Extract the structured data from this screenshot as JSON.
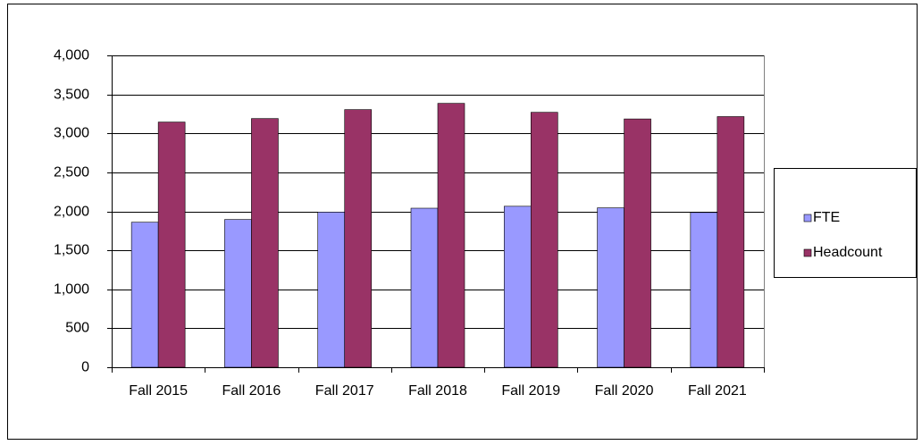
{
  "chart_data": {
    "type": "bar",
    "categories": [
      "Fall 2015",
      "Fall 2016",
      "Fall 2017",
      "Fall 2018",
      "Fall 2019",
      "Fall 2020",
      "Fall 2021"
    ],
    "series": [
      {
        "name": "FTE",
        "color": "#9999ff",
        "values": [
          1860,
          1895,
          1990,
          2040,
          2065,
          2045,
          1985
        ]
      },
      {
        "name": "Headcount",
        "color": "#993366",
        "values": [
          3145,
          3190,
          3305,
          3385,
          3270,
          3185,
          3215
        ]
      }
    ],
    "ylim": [
      0,
      4000
    ],
    "yticks": [
      0,
      500,
      {
        "value": 1000,
        "label": "1,000"
      },
      {
        "value": 1500,
        "label": "1,500"
      },
      {
        "value": 2000,
        "label": "2,000"
      },
      {
        "value": 2500,
        "label": "2,500"
      },
      {
        "value": 3000,
        "label": "3,000"
      },
      {
        "value": 3500,
        "label": "3,500"
      },
      {
        "value": 4000,
        "label": "4,000"
      }
    ],
    "grid": true,
    "legend": "right"
  }
}
